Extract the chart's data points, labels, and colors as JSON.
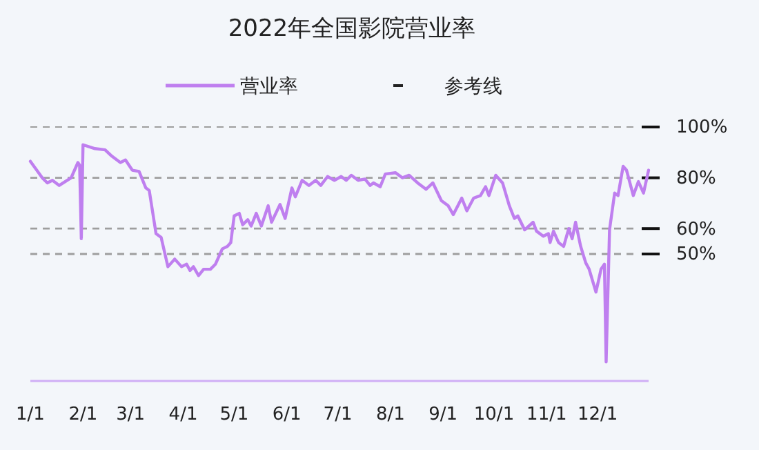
{
  "chart_data": {
    "type": "line",
    "title": "2022年全国影院营业率",
    "legend": "top",
    "grid": false,
    "marker": "none",
    "line_style": "solid",
    "xlim": [
      "--01-01",
      "--12-31"
    ],
    "xticks": [
      {
        "value": "--01-01",
        "label": "1/1"
      },
      {
        "value": "--02-01",
        "label": "2/1"
      },
      {
        "value": "--03-01",
        "label": "3/1"
      },
      {
        "value": "--04-01",
        "label": "4/1"
      },
      {
        "value": "--05-01",
        "label": "5/1"
      },
      {
        "value": "--06-01",
        "label": "6/1"
      },
      {
        "value": "--07-01",
        "label": "7/1"
      },
      {
        "value": "--08-01",
        "label": "8/1"
      },
      {
        "value": "--09-01",
        "label": "9/1"
      },
      {
        "value": "--10-01",
        "label": "10/1"
      },
      {
        "value": "--11-01",
        "label": "11/1"
      },
      {
        "value": "--12-01",
        "label": "12/1"
      }
    ],
    "ylim": [
      0,
      100
    ],
    "yticks": [
      {
        "value": 50,
        "label": "50%"
      },
      {
        "value": 60,
        "label": "60%"
      },
      {
        "value": 80,
        "label": "80%"
      },
      {
        "value": 100,
        "label": "100%"
      }
    ],
    "ref_lines": [
      {
        "axis": "y",
        "value": 100,
        "label": "参考线",
        "color": "#9e9e9e",
        "line_style": "dashed"
      },
      {
        "axis": "y",
        "value": 80,
        "label": null,
        "color": "#9e9e9e",
        "line_style": "dashed"
      },
      {
        "axis": "y",
        "value": 60,
        "label": null,
        "color": "#9e9e9e",
        "line_style": "dashed"
      },
      {
        "axis": "y",
        "value": 50,
        "label": null,
        "color": "#9e9e9e",
        "line_style": "dashed"
      }
    ],
    "x": [
      "--01-01",
      "--01-08",
      "--01-11",
      "--01-14",
      "--01-18",
      "--01-25",
      "--01-29",
      "--01-30",
      "--01-31",
      "--02-01",
      "--02-08",
      "--02-14",
      "--02-18",
      "--02-23",
      "--02-26",
      "--03-02",
      "--03-06",
      "--03-10",
      "--03-12",
      "--03-16",
      "--03-19",
      "--03-23",
      "--03-27",
      "--03-31",
      "--04-03",
      "--04-05",
      "--04-07",
      "--04-10",
      "--04-13",
      "--04-17",
      "--04-20",
      "--04-24",
      "--04-27",
      "--04-29",
      "--05-01",
      "--05-04",
      "--05-06",
      "--05-09",
      "--05-11",
      "--05-14",
      "--05-17",
      "--05-21",
      "--05-23",
      "--05-28",
      "--05-31",
      "--06-04",
      "--06-06",
      "--06-10",
      "--06-14",
      "--06-18",
      "--06-21",
      "--06-25",
      "--06-29",
      "--07-03",
      "--07-06",
      "--07-09",
      "--07-13",
      "--07-17",
      "--07-20",
      "--07-22",
      "--07-26",
      "--07-29",
      "--08-04",
      "--08-08",
      "--08-12",
      "--08-17",
      "--08-22",
      "--08-26",
      "--08-31",
      "--09-04",
      "--09-07",
      "--09-12",
      "--09-15",
      "--09-19",
      "--09-23",
      "--09-26",
      "--09-28",
      "--10-02",
      "--10-06",
      "--10-10",
      "--10-13",
      "--10-15",
      "--10-19",
      "--10-24",
      "--10-26",
      "--10-30",
      "--11-02",
      "--11-03",
      "--11-05",
      "--11-08",
      "--11-11",
      "--11-14",
      "--11-16",
      "--11-18",
      "--11-21",
      "--11-24",
      "--11-26",
      "--11-30",
      "--12-03",
      "--12-05",
      "--12-06",
      "--12-08",
      "--12-11",
      "--12-13",
      "--12-16",
      "--12-18",
      "--12-22",
      "--12-25",
      "--12-28",
      "--12-31"
    ],
    "series": [
      {
        "name": "营业率",
        "color": "#bf7fef",
        "values": [
          86.5,
          80,
          78,
          79,
          77,
          80,
          86,
          85,
          56,
          93,
          91.5,
          91,
          88.5,
          86,
          87,
          83,
          82.5,
          76,
          75,
          58,
          56.5,
          45,
          48,
          45,
          46,
          43.5,
          45,
          41.5,
          44,
          44,
          46,
          52,
          53,
          54.5,
          65,
          66,
          61.5,
          63.5,
          61,
          66,
          61,
          69,
          62.5,
          69.5,
          64,
          76,
          72.5,
          79,
          77,
          79,
          77,
          80.5,
          79,
          80.5,
          79,
          81,
          79,
          79.5,
          77,
          78,
          76.5,
          81.5,
          82,
          80,
          81,
          78,
          75.5,
          78,
          71,
          69,
          65.5,
          72,
          67,
          72,
          73,
          76.5,
          73,
          81,
          78,
          69,
          64,
          65,
          59.5,
          62.5,
          59,
          57,
          58,
          54.5,
          59,
          54.5,
          53,
          60,
          56,
          62.5,
          53,
          46.5,
          44,
          35,
          44,
          46,
          7.5,
          59.5,
          74,
          73,
          84.5,
          83,
          73,
          78.5,
          74,
          83
        ]
      }
    ]
  }
}
